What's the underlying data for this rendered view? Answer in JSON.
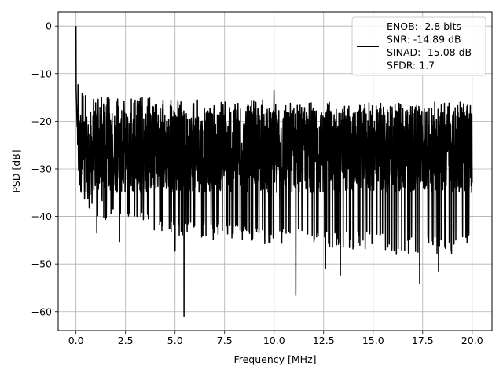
{
  "chart_data": {
    "type": "line",
    "title": "",
    "xlabel": "Frequency [MHz]",
    "ylabel": "PSD [dB]",
    "xlim": [
      -0.9,
      21.0
    ],
    "ylim": [
      -64,
      3
    ],
    "xticks": [
      0.0,
      2.5,
      5.0,
      7.5,
      10.0,
      12.5,
      15.0,
      17.5,
      20.0
    ],
    "xtick_labels": [
      "0.0",
      "2.5",
      "5.0",
      "7.5",
      "10.0",
      "12.5",
      "15.0",
      "17.5",
      "20.0"
    ],
    "yticks": [
      0,
      -10,
      -20,
      -30,
      -40,
      -50,
      -60
    ],
    "ytick_labels": [
      "0",
      "−10",
      "−20",
      "−30",
      "−40",
      "−50",
      "−60"
    ],
    "grid": true,
    "legend_position": "top-right",
    "series": [
      {
        "name": "ENOB: -2.8 bits\nSNR: -14.89 dB\nSINAD: -15.08 dB\nSFDR: 1.7",
        "color": "#000000",
        "x_range": [
          0.0,
          20.0
        ],
        "envelope": {
          "x": [
            0.0,
            0.05,
            0.1,
            0.2,
            0.5,
            1.0,
            2.0,
            3.0,
            4.0,
            5.0,
            6.0,
            7.0,
            8.0,
            9.0,
            10.0,
            11.0,
            12.0,
            13.0,
            14.0,
            15.0,
            16.0,
            17.0,
            18.0,
            19.0,
            20.0
          ],
          "upper": [
            0.0,
            -5.0,
            -9.0,
            -12.0,
            -14.0,
            -14.5,
            -15.0,
            -15.0,
            -15.0,
            -15.5,
            -15.5,
            -15.5,
            -16.0,
            -15.5,
            -15.5,
            -16.0,
            -16.0,
            -16.0,
            -16.0,
            -16.0,
            -16.0,
            -16.5,
            -16.0,
            -16.0,
            -16.0
          ],
          "lower": [
            -12.0,
            -20.0,
            -30.0,
            -35.0,
            -38.0,
            -40.0,
            -42.0,
            -42.0,
            -43.0,
            -44.0,
            -44.0,
            -45.0,
            -45.0,
            -46.0,
            -46.0,
            -46.0,
            -47.0,
            -47.0,
            -47.0,
            -47.0,
            -48.0,
            -48.0,
            -48.0,
            -48.0,
            -47.0
          ],
          "band_top": -20.0,
          "band_bottom": -35.0
        },
        "extremes": [
          {
            "x": 0.0,
            "y": 0.0
          },
          {
            "x": 0.1,
            "y": -12.3
          },
          {
            "x": 5.45,
            "y": -60.9
          },
          {
            "x": 11.1,
            "y": -56.6
          },
          {
            "x": 13.35,
            "y": -52.3
          },
          {
            "x": 12.6,
            "y": -51.0
          },
          {
            "x": 18.3,
            "y": -51.5
          },
          {
            "x": 17.35,
            "y": -54.0
          },
          {
            "x": 10.0,
            "y": -13.5
          },
          {
            "x": 2.2,
            "y": -45.3
          },
          {
            "x": 5.0,
            "y": -47.3
          },
          {
            "x": 1.05,
            "y": -43.5
          }
        ]
      }
    ]
  }
}
